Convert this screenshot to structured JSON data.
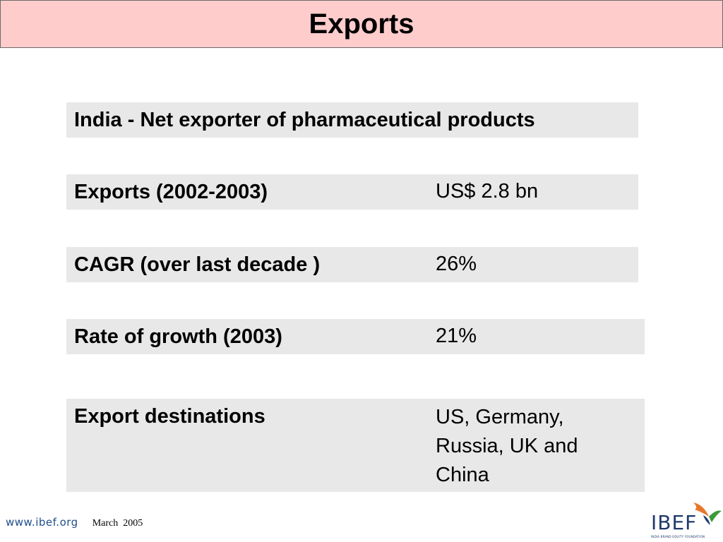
{
  "slide": {
    "title": "Exports"
  },
  "rows": {
    "heading": {
      "label": "India - Net exporter of pharmaceutical products"
    },
    "exports": {
      "label": "Exports (2002-2003)",
      "value": "US$ 2.8 bn"
    },
    "cagr": {
      "label": "CAGR (over last decade )",
      "value": "26%"
    },
    "growth": {
      "label": "Rate of growth (2003)",
      "value": "21%"
    },
    "destinations": {
      "label": "Export destinations",
      "value": "US, Germany, Russia, UK and China"
    }
  },
  "footer": {
    "url": "www.ibef.org",
    "date": "March  2005"
  },
  "logo": {
    "text": "IBEF",
    "tagline": "INDIA BRAND EQUITY FOUNDATION",
    "icon": "bird-icon",
    "colors": {
      "text": "#1f3a6b",
      "bird_orange": "#e8762b",
      "bird_green": "#3a9b3a"
    }
  },
  "colors": {
    "title_background": "#ffcccc",
    "row_background": "#e8e8e8"
  }
}
